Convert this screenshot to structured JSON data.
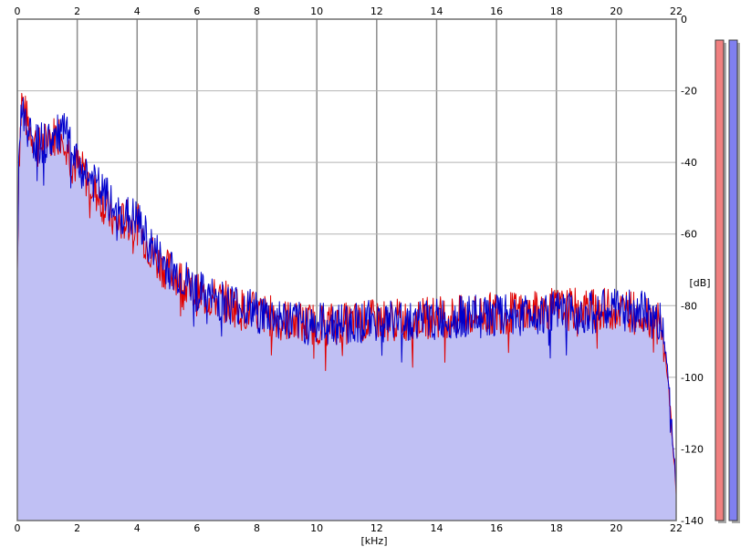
{
  "chart_data": {
    "type": "line",
    "xlabel": "[kHz]",
    "ylabel": "[dB]",
    "xlim": [
      0,
      22
    ],
    "ylim": [
      -140,
      0
    ],
    "xticks": [
      0,
      2,
      4,
      6,
      8,
      10,
      12,
      14,
      16,
      18,
      20,
      22
    ],
    "yticks": [
      0,
      -20,
      -40,
      -60,
      -80,
      -100,
      -120,
      -140
    ],
    "grid": true,
    "fill_color": "#c0c0f4",
    "series": [
      {
        "color": "#e00000",
        "x": [
          0,
          0.05,
          0.15,
          0.3,
          0.5,
          0.7,
          1.0,
          1.3,
          1.6,
          1.8,
          2.0,
          2.3,
          2.6,
          3.0,
          3.3,
          3.6,
          4.0,
          4.3,
          4.6,
          5.0,
          5.3,
          5.6,
          6.0,
          6.5,
          7.0,
          7.5,
          8.0,
          8.5,
          9.0,
          9.5,
          10.0,
          11.0,
          12.0,
          13.0,
          14.0,
          15.0,
          16.0,
          17.0,
          18.0,
          19.0,
          20.0,
          21.0,
          21.5,
          21.7,
          21.9,
          22.0
        ],
        "values": [
          -70,
          -40,
          -22,
          -28,
          -32,
          -36,
          -34,
          -32,
          -32,
          -40,
          -41,
          -44,
          -48,
          -53,
          -58,
          -56,
          -57,
          -62,
          -67,
          -70,
          -71,
          -74,
          -77,
          -78,
          -79,
          -81,
          -82,
          -83,
          -84,
          -85,
          -85,
          -85,
          -84,
          -84,
          -83,
          -83,
          -82,
          -82,
          -81,
          -81,
          -81,
          -82,
          -86,
          -98,
          -120,
          -133
        ]
      },
      {
        "color": "#0000cc",
        "x": [
          0,
          0.05,
          0.15,
          0.3,
          0.5,
          0.7,
          1.0,
          1.3,
          1.6,
          1.8,
          2.0,
          2.3,
          2.6,
          3.0,
          3.3,
          3.6,
          4.0,
          4.3,
          4.6,
          5.0,
          5.3,
          5.6,
          6.0,
          6.5,
          7.0,
          7.5,
          8.0,
          8.5,
          9.0,
          9.5,
          10.0,
          11.0,
          12.0,
          13.0,
          14.0,
          15.0,
          16.0,
          17.0,
          18.0,
          19.0,
          20.0,
          21.0,
          21.5,
          21.7,
          21.9,
          22.0
        ],
        "values": [
          -70,
          -38,
          -24,
          -29,
          -33,
          -35,
          -34,
          -33,
          -31,
          -37,
          -41,
          -43,
          -46,
          -50,
          -55,
          -55,
          -56,
          -61,
          -65,
          -69,
          -71,
          -73,
          -76,
          -78,
          -79,
          -80,
          -82,
          -83,
          -84,
          -85,
          -85,
          -85,
          -84,
          -84,
          -84,
          -83,
          -83,
          -82,
          -82,
          -82,
          -81,
          -82,
          -85,
          -95,
          -118,
          -130
        ]
      }
    ],
    "level_meters": [
      {
        "color": "#f08080",
        "level": 1.0
      },
      {
        "color": "#8080f0",
        "level": 1.0
      }
    ]
  }
}
